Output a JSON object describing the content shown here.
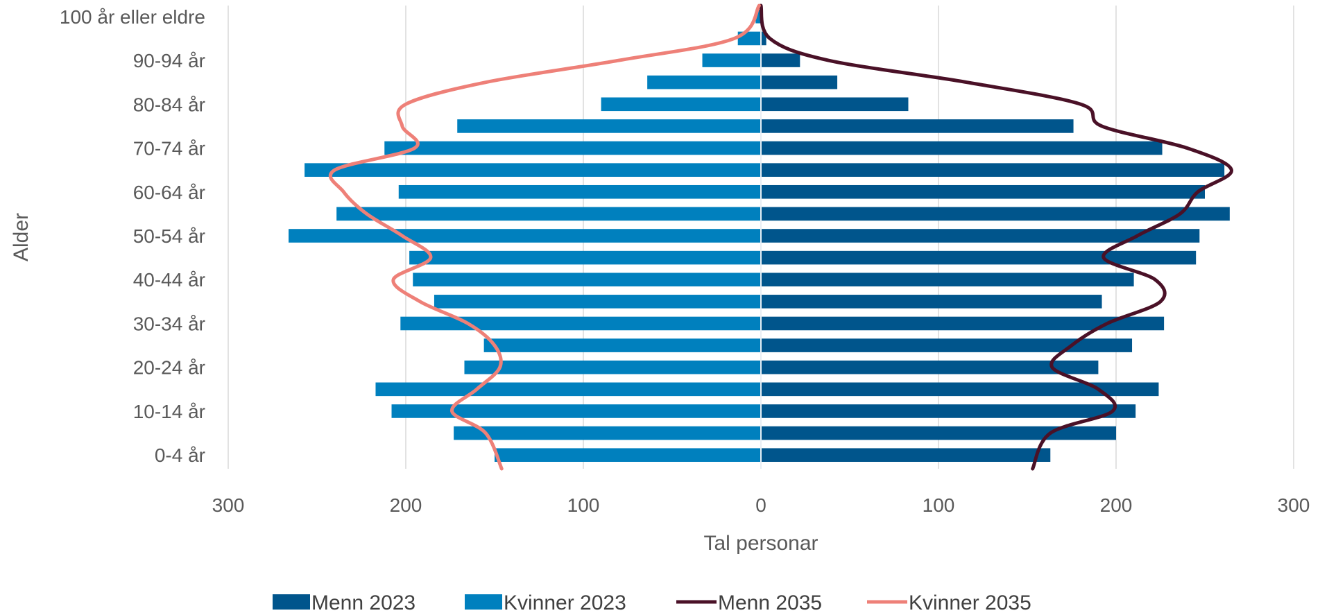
{
  "chart_data": {
    "type": "bar",
    "orientation": "horizontal",
    "layout": "population-pyramid",
    "xlabel": "Tal personar",
    "ylabel": "Alder",
    "xlim": [
      -300,
      300
    ],
    "x_ticks": [
      -300,
      -200,
      -100,
      0,
      100,
      200,
      300
    ],
    "x_tick_labels": [
      "300",
      "200",
      "100",
      "0",
      "100",
      "200",
      "300"
    ],
    "grid": "vertical",
    "legend_position": "bottom",
    "categories": [
      "0-4 år",
      "5-9 år",
      "10-14 år",
      "15-19 år",
      "20-24 år",
      "25-29 år",
      "30-34 år",
      "35-39 år",
      "40-44 år",
      "45-49 år",
      "50-54 år",
      "55-59 år",
      "60-64 år",
      "65-69 år",
      "70-74 år",
      "75-79 år",
      "80-84 år",
      "85-89 år",
      "90-94 år",
      "95-99 år",
      "100 år eller eldre"
    ],
    "category_labels_shown": [
      "0-4 år",
      "10-14 år",
      "20-24 år",
      "30-34 år",
      "40-44 år",
      "50-54 år",
      "60-64 år",
      "70-74 år",
      "80-84 år",
      "90-94 år",
      "100 år eller eldre"
    ],
    "series": [
      {
        "name": "Menn 2023",
        "type": "bar",
        "side": "right",
        "color": "#00558C",
        "values": [
          163,
          200,
          211,
          224,
          190,
          209,
          227,
          192,
          210,
          245,
          247,
          264,
          250,
          261,
          226,
          176,
          83,
          43,
          22,
          3,
          1
        ]
      },
      {
        "name": "Kvinner 2023",
        "type": "bar",
        "side": "left",
        "color": "#0080BE",
        "values": [
          150,
          173,
          208,
          217,
          167,
          156,
          203,
          184,
          196,
          198,
          266,
          239,
          204,
          257,
          212,
          171,
          90,
          64,
          33,
          13,
          3
        ]
      },
      {
        "name": "Menn 2035",
        "type": "line",
        "side": "right",
        "color": "#4A1127",
        "values": [
          153,
          163,
          198,
          190,
          164,
          175,
          195,
          225,
          222,
          193,
          212,
          236,
          246,
          265,
          240,
          192,
          180,
          116,
          38,
          5,
          0
        ]
      },
      {
        "name": "Kvinner 2035",
        "type": "line",
        "side": "left",
        "color": "#EE8078",
        "values": [
          146,
          155,
          174,
          160,
          147,
          150,
          165,
          192,
          207,
          186,
          202,
          222,
          235,
          240,
          195,
          202,
          200,
          155,
          80,
          15,
          1
        ]
      }
    ]
  }
}
